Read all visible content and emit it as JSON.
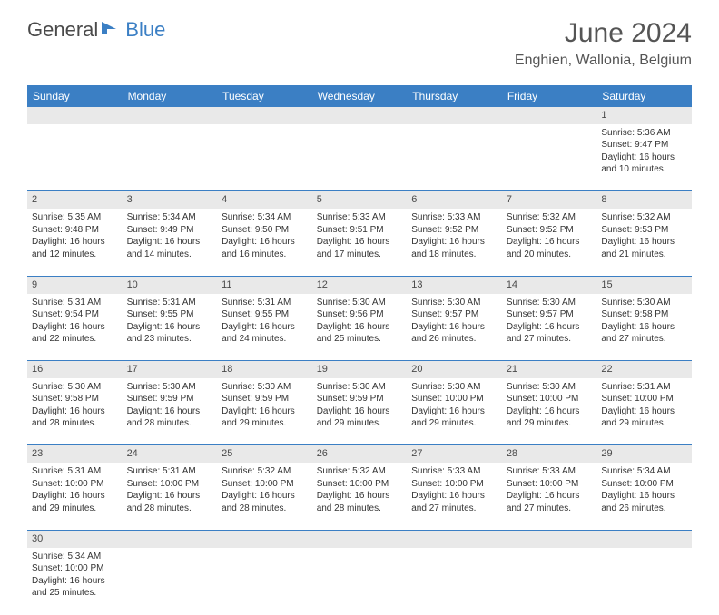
{
  "brand": {
    "part1": "General",
    "part2": "Blue"
  },
  "title": "June 2024",
  "location": "Enghien, Wallonia, Belgium",
  "colors": {
    "header_bg": "#3b7fc4",
    "daynum_bg": "#e9e9e9",
    "text": "#333333"
  },
  "day_headers": [
    "Sunday",
    "Monday",
    "Tuesday",
    "Wednesday",
    "Thursday",
    "Friday",
    "Saturday"
  ],
  "weeks": [
    [
      null,
      null,
      null,
      null,
      null,
      null,
      {
        "n": "1",
        "sr": "Sunrise: 5:36 AM",
        "ss": "Sunset: 9:47 PM",
        "d1": "Daylight: 16 hours",
        "d2": "and 10 minutes."
      }
    ],
    [
      {
        "n": "2",
        "sr": "Sunrise: 5:35 AM",
        "ss": "Sunset: 9:48 PM",
        "d1": "Daylight: 16 hours",
        "d2": "and 12 minutes."
      },
      {
        "n": "3",
        "sr": "Sunrise: 5:34 AM",
        "ss": "Sunset: 9:49 PM",
        "d1": "Daylight: 16 hours",
        "d2": "and 14 minutes."
      },
      {
        "n": "4",
        "sr": "Sunrise: 5:34 AM",
        "ss": "Sunset: 9:50 PM",
        "d1": "Daylight: 16 hours",
        "d2": "and 16 minutes."
      },
      {
        "n": "5",
        "sr": "Sunrise: 5:33 AM",
        "ss": "Sunset: 9:51 PM",
        "d1": "Daylight: 16 hours",
        "d2": "and 17 minutes."
      },
      {
        "n": "6",
        "sr": "Sunrise: 5:33 AM",
        "ss": "Sunset: 9:52 PM",
        "d1": "Daylight: 16 hours",
        "d2": "and 18 minutes."
      },
      {
        "n": "7",
        "sr": "Sunrise: 5:32 AM",
        "ss": "Sunset: 9:52 PM",
        "d1": "Daylight: 16 hours",
        "d2": "and 20 minutes."
      },
      {
        "n": "8",
        "sr": "Sunrise: 5:32 AM",
        "ss": "Sunset: 9:53 PM",
        "d1": "Daylight: 16 hours",
        "d2": "and 21 minutes."
      }
    ],
    [
      {
        "n": "9",
        "sr": "Sunrise: 5:31 AM",
        "ss": "Sunset: 9:54 PM",
        "d1": "Daylight: 16 hours",
        "d2": "and 22 minutes."
      },
      {
        "n": "10",
        "sr": "Sunrise: 5:31 AM",
        "ss": "Sunset: 9:55 PM",
        "d1": "Daylight: 16 hours",
        "d2": "and 23 minutes."
      },
      {
        "n": "11",
        "sr": "Sunrise: 5:31 AM",
        "ss": "Sunset: 9:55 PM",
        "d1": "Daylight: 16 hours",
        "d2": "and 24 minutes."
      },
      {
        "n": "12",
        "sr": "Sunrise: 5:30 AM",
        "ss": "Sunset: 9:56 PM",
        "d1": "Daylight: 16 hours",
        "d2": "and 25 minutes."
      },
      {
        "n": "13",
        "sr": "Sunrise: 5:30 AM",
        "ss": "Sunset: 9:57 PM",
        "d1": "Daylight: 16 hours",
        "d2": "and 26 minutes."
      },
      {
        "n": "14",
        "sr": "Sunrise: 5:30 AM",
        "ss": "Sunset: 9:57 PM",
        "d1": "Daylight: 16 hours",
        "d2": "and 27 minutes."
      },
      {
        "n": "15",
        "sr": "Sunrise: 5:30 AM",
        "ss": "Sunset: 9:58 PM",
        "d1": "Daylight: 16 hours",
        "d2": "and 27 minutes."
      }
    ],
    [
      {
        "n": "16",
        "sr": "Sunrise: 5:30 AM",
        "ss": "Sunset: 9:58 PM",
        "d1": "Daylight: 16 hours",
        "d2": "and 28 minutes."
      },
      {
        "n": "17",
        "sr": "Sunrise: 5:30 AM",
        "ss": "Sunset: 9:59 PM",
        "d1": "Daylight: 16 hours",
        "d2": "and 28 minutes."
      },
      {
        "n": "18",
        "sr": "Sunrise: 5:30 AM",
        "ss": "Sunset: 9:59 PM",
        "d1": "Daylight: 16 hours",
        "d2": "and 29 minutes."
      },
      {
        "n": "19",
        "sr": "Sunrise: 5:30 AM",
        "ss": "Sunset: 9:59 PM",
        "d1": "Daylight: 16 hours",
        "d2": "and 29 minutes."
      },
      {
        "n": "20",
        "sr": "Sunrise: 5:30 AM",
        "ss": "Sunset: 10:00 PM",
        "d1": "Daylight: 16 hours",
        "d2": "and 29 minutes."
      },
      {
        "n": "21",
        "sr": "Sunrise: 5:30 AM",
        "ss": "Sunset: 10:00 PM",
        "d1": "Daylight: 16 hours",
        "d2": "and 29 minutes."
      },
      {
        "n": "22",
        "sr": "Sunrise: 5:31 AM",
        "ss": "Sunset: 10:00 PM",
        "d1": "Daylight: 16 hours",
        "d2": "and 29 minutes."
      }
    ],
    [
      {
        "n": "23",
        "sr": "Sunrise: 5:31 AM",
        "ss": "Sunset: 10:00 PM",
        "d1": "Daylight: 16 hours",
        "d2": "and 29 minutes."
      },
      {
        "n": "24",
        "sr": "Sunrise: 5:31 AM",
        "ss": "Sunset: 10:00 PM",
        "d1": "Daylight: 16 hours",
        "d2": "and 28 minutes."
      },
      {
        "n": "25",
        "sr": "Sunrise: 5:32 AM",
        "ss": "Sunset: 10:00 PM",
        "d1": "Daylight: 16 hours",
        "d2": "and 28 minutes."
      },
      {
        "n": "26",
        "sr": "Sunrise: 5:32 AM",
        "ss": "Sunset: 10:00 PM",
        "d1": "Daylight: 16 hours",
        "d2": "and 28 minutes."
      },
      {
        "n": "27",
        "sr": "Sunrise: 5:33 AM",
        "ss": "Sunset: 10:00 PM",
        "d1": "Daylight: 16 hours",
        "d2": "and 27 minutes."
      },
      {
        "n": "28",
        "sr": "Sunrise: 5:33 AM",
        "ss": "Sunset: 10:00 PM",
        "d1": "Daylight: 16 hours",
        "d2": "and 27 minutes."
      },
      {
        "n": "29",
        "sr": "Sunrise: 5:34 AM",
        "ss": "Sunset: 10:00 PM",
        "d1": "Daylight: 16 hours",
        "d2": "and 26 minutes."
      }
    ],
    [
      {
        "n": "30",
        "sr": "Sunrise: 5:34 AM",
        "ss": "Sunset: 10:00 PM",
        "d1": "Daylight: 16 hours",
        "d2": "and 25 minutes."
      },
      null,
      null,
      null,
      null,
      null,
      null
    ]
  ]
}
